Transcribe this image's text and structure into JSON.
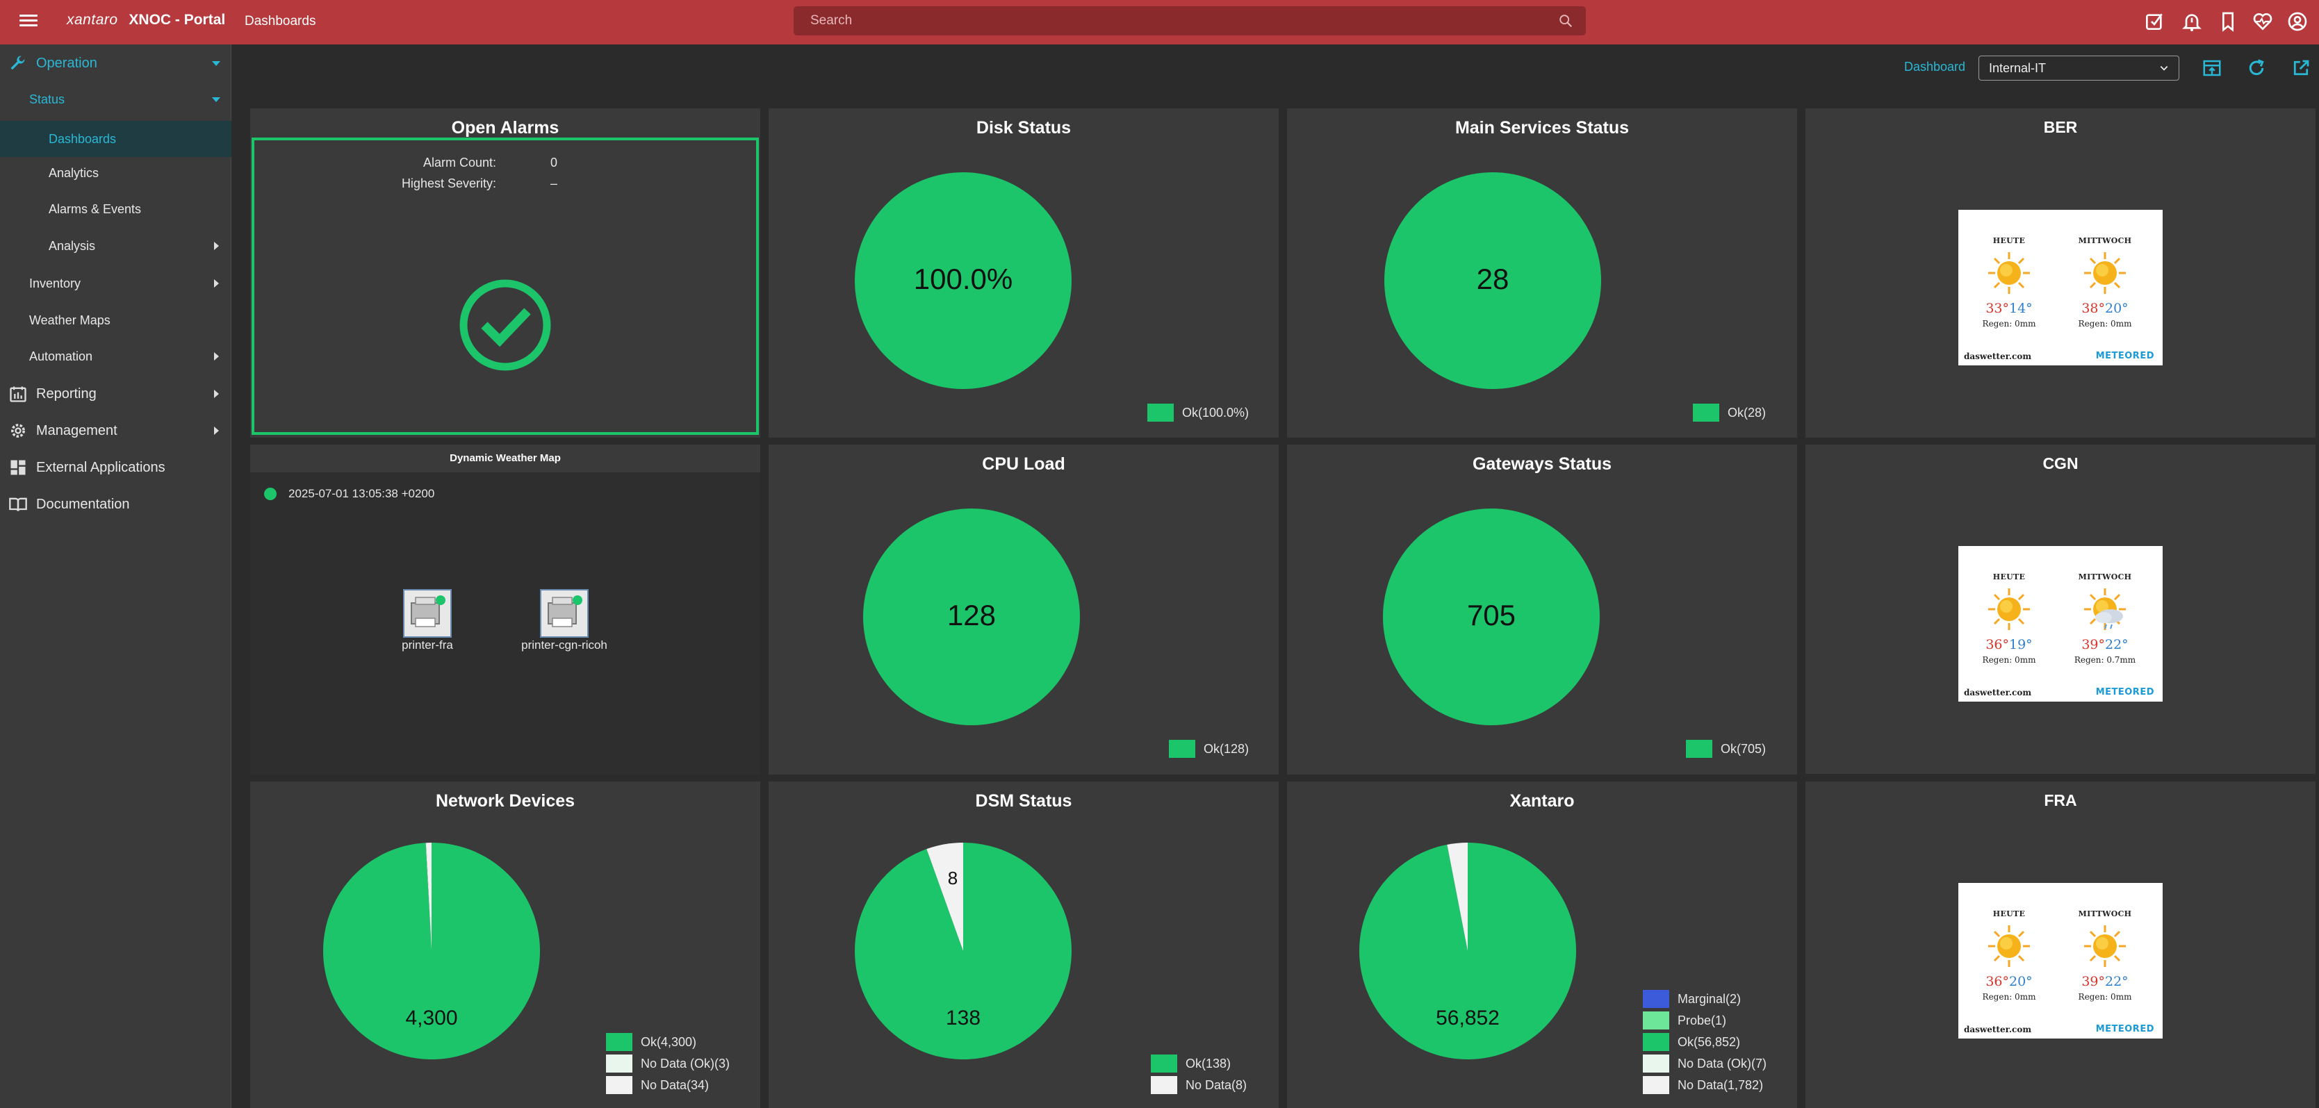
{
  "topbar": {
    "logo": "xantaro",
    "app_name": "XNOC - Portal",
    "breadcrumb": "Dashboards",
    "search_placeholder": "Search",
    "icons": [
      "ticket-icon",
      "alarm-bell-icon",
      "bookmark-icon",
      "heart-pulse-icon",
      "account-icon"
    ]
  },
  "sidebar": {
    "operation": "Operation",
    "status": "Status",
    "dashboards": "Dashboards",
    "analytics": "Analytics",
    "alarms_events": "Alarms & Events",
    "analysis": "Analysis",
    "inventory": "Inventory",
    "weather_maps": "Weather Maps",
    "automation": "Automation",
    "reporting": "Reporting",
    "management": "Management",
    "external_applications": "External Applications",
    "documentation": "Documentation"
  },
  "dashboard_header": {
    "label": "Dashboard",
    "selected": "Internal-IT"
  },
  "colors": {
    "ok": "#1cc46a",
    "no_data": "#f2f2f2",
    "no_data_ok": "#e8f6ee",
    "marginal": "#3b5bdb",
    "probe": "#6ee69a",
    "accent": "#29b8d6",
    "topbar": "#b5393d"
  },
  "panels": {
    "open_alarms": {
      "title": "Open Alarms",
      "alarm_count_label": "Alarm Count:",
      "alarm_count": "0",
      "highest_severity_label": "Highest Severity:",
      "highest_severity": "–"
    },
    "weather_map": {
      "title": "Dynamic Weather Map",
      "timestamp": "2025-07-01 13:05:38 +0200",
      "devices": [
        "printer-fra",
        "printer-cgn-ricoh"
      ]
    },
    "disk": {
      "title": "Disk Status",
      "center": "100.0%",
      "legend": [
        "Ok(100.0%)"
      ]
    },
    "main_services": {
      "title": "Main Services Status",
      "center": "28",
      "legend": [
        "Ok(28)"
      ]
    },
    "cpu": {
      "title": "CPU Load",
      "center": "128",
      "legend": [
        "Ok(128)"
      ]
    },
    "gateways": {
      "title": "Gateways Status",
      "center": "705",
      "legend": [
        "Ok(705)"
      ]
    },
    "network_devices": {
      "title": "Network Devices",
      "center": "4,300",
      "legend": [
        "Ok(4,300)",
        "No Data (Ok)(3)",
        "No Data(34)"
      ]
    },
    "dsm": {
      "title": "DSM Status",
      "center": "138",
      "slice_label": "8",
      "legend": [
        "Ok(138)",
        "No Data(8)"
      ]
    },
    "xantaro": {
      "title": "Xantaro",
      "center": "56,852",
      "legend": [
        "Marginal(2)",
        "Probe(1)",
        "Ok(56,852)",
        "No Data (Ok)(7)",
        "No Data(1,782)"
      ]
    },
    "weather": [
      {
        "title": "BER",
        "day1": "HEUTE",
        "day2": "MITTWOCH",
        "hi1": "33°",
        "lo1": "14°",
        "rain1": "Regen: 0mm",
        "hi2": "38°",
        "lo2": "20°",
        "rain2": "Regen: 0mm",
        "source": "daswetter.com",
        "brand": "METEORED",
        "icon1": "sun-icon",
        "icon2": "sun-icon"
      },
      {
        "title": "CGN",
        "day1": "HEUTE",
        "day2": "MITTWOCH",
        "hi1": "36°",
        "lo1": "19°",
        "rain1": "Regen: 0mm",
        "hi2": "39°",
        "lo2": "22°",
        "rain2": "Regen: 0.7mm",
        "source": "daswetter.com",
        "brand": "METEORED",
        "icon1": "sun-icon",
        "icon2": "sun-cloud-rain-icon"
      },
      {
        "title": "FRA",
        "day1": "HEUTE",
        "day2": "MITTWOCH",
        "hi1": "36°",
        "lo1": "20°",
        "rain1": "Regen: 0mm",
        "hi2": "39°",
        "lo2": "22°",
        "rain2": "Regen: 0mm",
        "source": "daswetter.com",
        "brand": "METEORED",
        "icon1": "sun-icon",
        "icon2": "sun-icon"
      }
    ]
  },
  "chart_data": [
    {
      "type": "pie",
      "title": "Disk Status",
      "labels": [
        "Ok"
      ],
      "values": [
        100.0
      ],
      "unit": "%"
    },
    {
      "type": "pie",
      "title": "Main Services Status",
      "labels": [
        "Ok"
      ],
      "values": [
        28
      ]
    },
    {
      "type": "pie",
      "title": "CPU Load",
      "labels": [
        "Ok"
      ],
      "values": [
        128
      ]
    },
    {
      "type": "pie",
      "title": "Gateways Status",
      "labels": [
        "Ok"
      ],
      "values": [
        705
      ]
    },
    {
      "type": "pie",
      "title": "Network Devices",
      "labels": [
        "Ok",
        "No Data (Ok)",
        "No Data"
      ],
      "values": [
        4300,
        3,
        34
      ]
    },
    {
      "type": "pie",
      "title": "DSM Status",
      "labels": [
        "Ok",
        "No Data"
      ],
      "values": [
        138,
        8
      ]
    },
    {
      "type": "pie",
      "title": "Xantaro",
      "labels": [
        "Marginal",
        "Probe",
        "Ok",
        "No Data (Ok)",
        "No Data"
      ],
      "values": [
        2,
        1,
        56852,
        7,
        1782
      ]
    }
  ]
}
